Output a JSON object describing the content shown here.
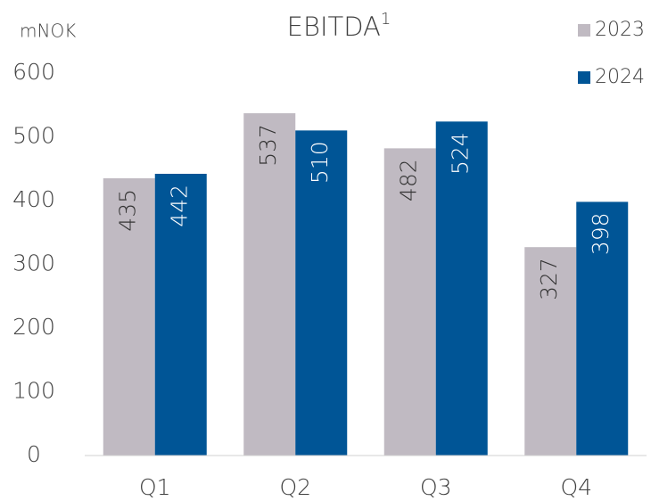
{
  "chart_data": {
    "type": "bar",
    "title": "EBITDA",
    "title_superscript": "1",
    "ylabel": "mNOK",
    "categories": [
      "Q1",
      "Q2",
      "Q3",
      "Q4"
    ],
    "series": [
      {
        "name": "2023",
        "color": "#c0bac2",
        "values": [
          435,
          537,
          482,
          327
        ]
      },
      {
        "name": "2024",
        "color": "#005596",
        "values": [
          442,
          510,
          524,
          398
        ]
      }
    ],
    "ylim": [
      0,
      600
    ],
    "yticks": [
      0,
      100,
      200,
      300,
      400,
      500,
      600
    ],
    "legend": "top-right"
  }
}
